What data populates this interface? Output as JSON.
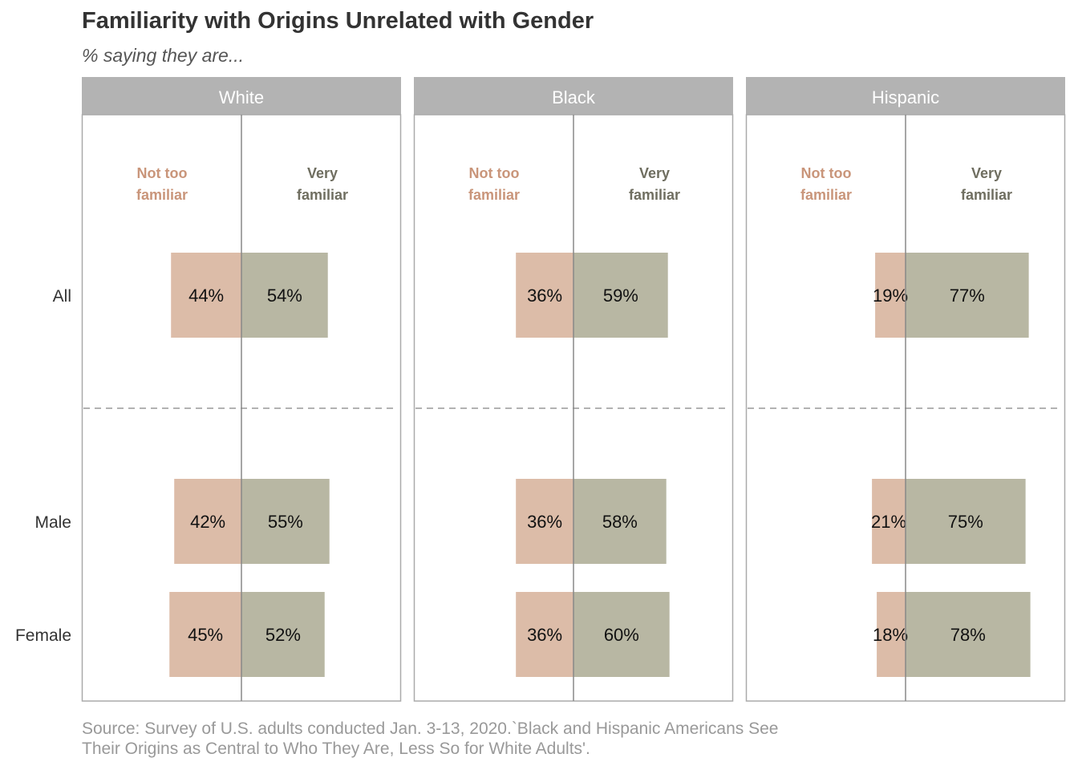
{
  "title": "Familiarity with Origins Unrelated with Gender",
  "subtitle": "% saying they are...",
  "source": {
    "line1": "Source: Survey of U.S. adults conducted Jan. 3-13, 2020.`Black and Hispanic Americans See",
    "line2": "Their Origins as Central to Who They Are, Less So for White Adults'."
  },
  "colors": {
    "not_too": "#dcbca8",
    "very": "#b8b7a3",
    "not_too_label": "#c9957a",
    "very_label": "#6f6e60",
    "header_bg": "#b3b3b3",
    "header_text": "#ffffff",
    "frame": "#aaaaaa",
    "axis": "#888888"
  },
  "chart_data": {
    "type": "bar",
    "orientation": "horizontal-diverging",
    "categories": [
      "All",
      "Male",
      "Female"
    ],
    "negative_label": "Not too familiar",
    "positive_label": "Very familiar",
    "negative_label_lines": [
      "Not too",
      "familiar"
    ],
    "positive_label_lines": [
      "Very",
      "familiar"
    ],
    "xlim": [
      -100,
      100
    ],
    "unit": "%",
    "panels": [
      {
        "name": "White",
        "not_too": [
          44,
          42,
          45
        ],
        "very": [
          54,
          55,
          52
        ]
      },
      {
        "name": "Black",
        "not_too": [
          36,
          36,
          36
        ],
        "very": [
          59,
          58,
          60
        ]
      },
      {
        "name": "Hispanic",
        "not_too": [
          19,
          21,
          18
        ],
        "very": [
          77,
          75,
          78
        ]
      }
    ]
  }
}
